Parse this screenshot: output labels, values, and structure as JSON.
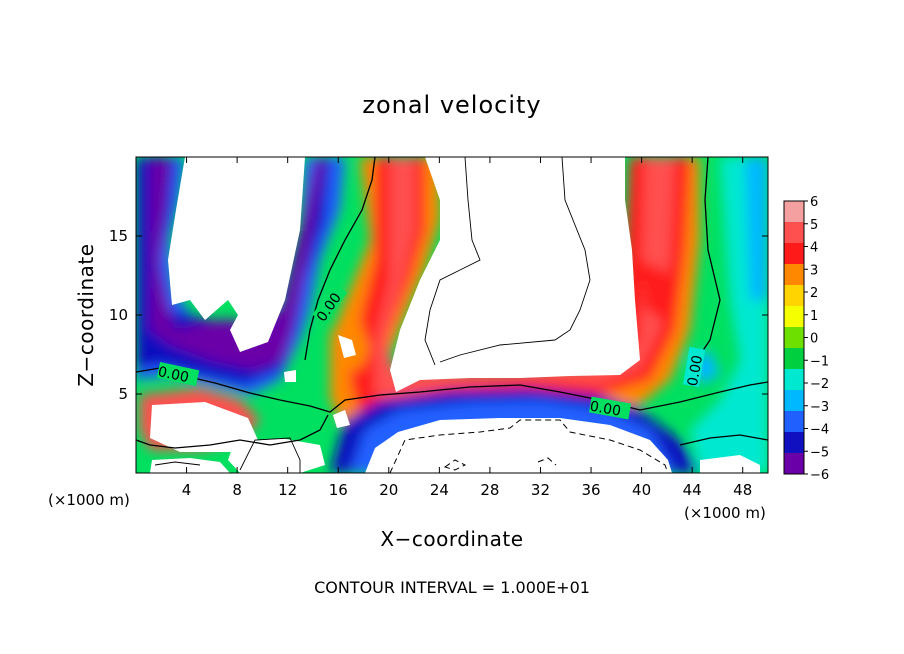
{
  "chart_data": {
    "type": "heatmap",
    "title": "zonal velocity",
    "xlabel": "X−coordinate",
    "ylabel": "Z−coordinate",
    "x_unit_left": "(×1000 m)",
    "x_unit_right": "(×1000 m)",
    "footer": "CONTOUR INTERVAL = 1.000E+01",
    "xlim": [
      0,
      50
    ],
    "ylim": [
      0,
      20
    ],
    "x_ticks": [
      4,
      8,
      12,
      16,
      20,
      24,
      28,
      32,
      36,
      40,
      44,
      48
    ],
    "y_ticks": [
      5,
      10,
      15
    ],
    "colorbar": {
      "min": -6,
      "max": 6,
      "levels": [
        6,
        5,
        4,
        3,
        2,
        1,
        0,
        -1,
        -2,
        -3,
        -4,
        -5,
        -6
      ],
      "labels": [
        "6",
        "5",
        "4",
        "3",
        "2",
        "1",
        "0",
        "−1",
        "−2",
        "−3",
        "−4",
        "−5",
        "−6"
      ],
      "colors": [
        "#f4a0a0",
        "#ff5050",
        "#ff1a1a",
        "#ff8800",
        "#ffd400",
        "#f5ff00",
        "#6ee000",
        "#00d040",
        "#00e8d0",
        "#00b8ff",
        "#2060ff",
        "#1010c0",
        "#6a00a8"
      ]
    },
    "contour_labels": [
      "0.00",
      "0.00",
      "0.00",
      "0.00"
    ]
  }
}
